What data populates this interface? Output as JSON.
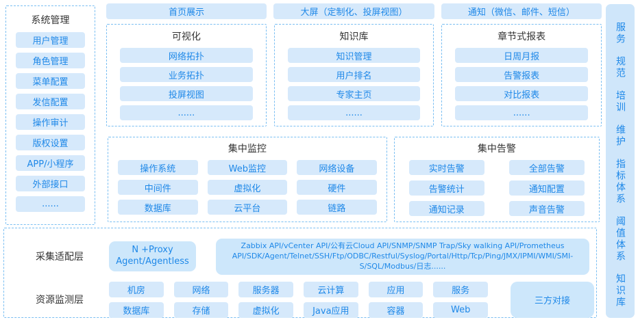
{
  "colors": {
    "accent_text": "#1e88e8",
    "button_bg": "#d6e9fb",
    "panel_bg": "#cfe6fa",
    "dashed_border": "#79bef2",
    "title_text": "#333333"
  },
  "left_sidebar": {
    "title": "系统管理",
    "items": [
      "用户管理",
      "角色管理",
      "菜单配置",
      "发信配置",
      "操作审计",
      "版权设置",
      "APP/小程序",
      "外部接口",
      "......"
    ]
  },
  "top_row": {
    "items": [
      "首页展示",
      "大屏（定制化、投屏视图）",
      "通知（微信、邮件、短信）"
    ]
  },
  "feature_boxes": [
    {
      "title": "可视化",
      "items": [
        "网络拓扑",
        "业务拓扑",
        "投屏视图",
        "......"
      ]
    },
    {
      "title": "知识库",
      "items": [
        "知识管理",
        "用户排名",
        "专家主页",
        "......"
      ]
    },
    {
      "title": "章节式报表",
      "items": [
        "日周月报",
        "告警报表",
        "对比报表",
        "......"
      ]
    }
  ],
  "monitoring": {
    "title": "集中监控",
    "items": [
      "操作系统",
      "Web监控",
      "网络设备",
      "中间件",
      "虚拟化",
      "硬件",
      "数据库",
      "云平台",
      "链路"
    ]
  },
  "alerting": {
    "title": "集中告警",
    "items": [
      "实时告警",
      "全部告警",
      "告警统计",
      "通知配置",
      "通知记录",
      "声音告警"
    ]
  },
  "bottom": {
    "collect_label": "采集适配层",
    "proxy_line1": "N +Proxy",
    "proxy_line2": "Agent/Agentless",
    "protocols": "Zabbix API/vCenter API/公有云Cloud API/SNMP/SNMP Trap/Sky walking API/Prometheus API/SDK/Agent/Telnet/SSH/Ftp/ODBC/Restful/Syslog/Portal/Http/Tcp/Ping/JMX/IPMI/WMI/SMI-S/SQL/Modbus/日志......",
    "resource_label": "资源监测层",
    "resources": [
      "机房",
      "网络",
      "服务器",
      "云计算",
      "应用",
      "服务",
      "数据库",
      "存储",
      "虚拟化",
      "Java应用",
      "容器",
      "Web"
    ],
    "third_party": "三方对接"
  },
  "right_sidebar": {
    "items": [
      "服务",
      "规范",
      "培训",
      "维护",
      "指标体系",
      "阈值体系",
      "知识库"
    ]
  }
}
